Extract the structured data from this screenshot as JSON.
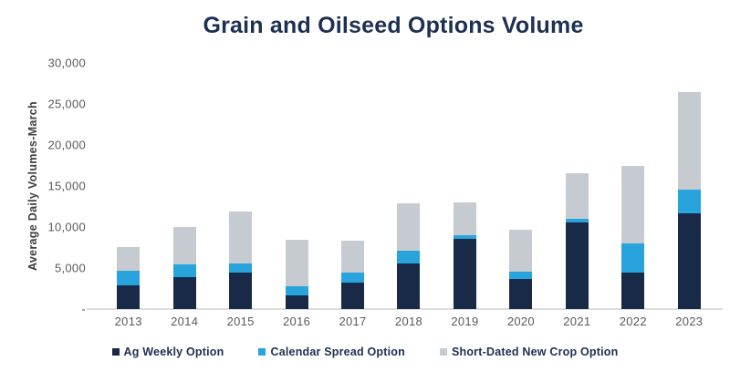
{
  "title": "Grain and Oilseed Options Volume",
  "colors": {
    "title_text": "#1c3051",
    "axis_text": "#58595b",
    "baseline": "#dadcde",
    "ag_weekly": "#182a47",
    "calendar_spread": "#29a3dc",
    "short_dated": "#c6cbd1"
  },
  "chart_data": {
    "type": "bar",
    "stacked": true,
    "title": "Grain and Oilseed Options Volume",
    "xlabel": "",
    "ylabel": "Average Daily Volumes-March",
    "ylim": [
      0,
      30000
    ],
    "ytick_step": 5000,
    "yticks_top_to_bottom": [
      "30,000",
      "25,000",
      "20,000",
      "15,000",
      "10,000",
      "5,000",
      "-"
    ],
    "grid": false,
    "legend_position": "bottom",
    "categories": [
      "2013",
      "2014",
      "2015",
      "2016",
      "2017",
      "2018",
      "2019",
      "2020",
      "2021",
      "2022",
      "2023"
    ],
    "series": [
      {
        "name": "Ag Weekly Option",
        "color": "#182a47",
        "values": [
          2900,
          3900,
          4450,
          1700,
          3200,
          5600,
          8600,
          3700,
          10600,
          4450,
          11650
        ]
      },
      {
        "name": "Calendar Spread Option",
        "color": "#29a3dc",
        "values": [
          1800,
          1500,
          1150,
          1100,
          1250,
          1550,
          450,
          850,
          450,
          3600,
          2900
        ]
      },
      {
        "name": "Short-Dated New Crop Option",
        "color": "#c6cbd1",
        "values": [
          2900,
          4600,
          6300,
          5600,
          3850,
          5750,
          3950,
          5150,
          5550,
          9450,
          11850
        ]
      }
    ],
    "totals": [
      7600,
      10000,
      11900,
      8400,
      8300,
      12900,
      13000,
      9700,
      16600,
      17500,
      26400
    ]
  }
}
